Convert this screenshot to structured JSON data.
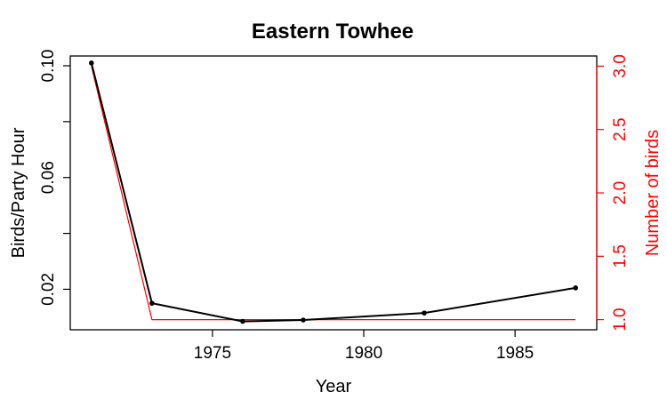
{
  "chart_data": {
    "type": "line",
    "title": "Eastern Towhee",
    "xlabel": "Year",
    "ylabel_left": "Birds/Party Hour",
    "ylabel_right": "Number of birds",
    "xlim": [
      1970.3,
      1987.7
    ],
    "ylim_left": [
      0.0055,
      0.1035
    ],
    "ylim_right": [
      0.92,
      3.08
    ],
    "x_ticks": [
      1975,
      1980,
      1985
    ],
    "y_left_ticks": [
      0.02,
      0.04,
      0.06,
      0.08,
      0.1
    ],
    "y_left_tick_labels": [
      "0.02",
      "",
      "0.06",
      "",
      "0.10"
    ],
    "y_right_ticks": [
      1.0,
      1.5,
      2.0,
      2.5,
      3.0
    ],
    "y_right_tick_labels": [
      "1.0",
      "1.5",
      "2.0",
      "2.5",
      "3.0"
    ],
    "grid": false,
    "series": [
      {
        "axis": "left",
        "color": "#000000",
        "markers": true,
        "x": [
          1971,
          1973,
          1976,
          1978,
          1982,
          1987
        ],
        "y": [
          0.101,
          0.015,
          0.0085,
          0.009,
          0.0115,
          0.0205
        ]
      },
      {
        "axis": "right",
        "color": "#ff0000",
        "markers": false,
        "x": [
          1971,
          1973,
          1976,
          1978,
          1982,
          1987
        ],
        "y": [
          3.0,
          1.0,
          1.0,
          1.0,
          1.0,
          1.0
        ]
      }
    ]
  }
}
